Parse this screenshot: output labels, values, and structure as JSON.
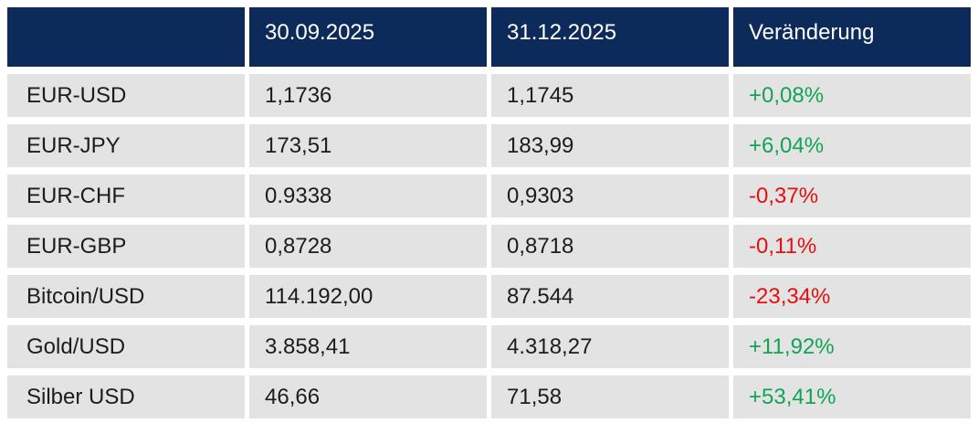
{
  "chart_data": {
    "type": "table",
    "title": "",
    "columns": [
      "",
      "30.09.2025",
      "31.12.2025",
      "Veränderung"
    ],
    "rows": [
      {
        "label": "EUR-USD",
        "v_30_09_2025": "1,1736",
        "v_31_12_2025": "1,1745",
        "change": "+0,08%",
        "change_numeric": 0.08,
        "trend": "up"
      },
      {
        "label": "EUR-JPY",
        "v_30_09_2025": "173,51",
        "v_31_12_2025": "183,99",
        "change": "+6,04%",
        "change_numeric": 6.04,
        "trend": "up"
      },
      {
        "label": "EUR-CHF",
        "v_30_09_2025": "0.9338",
        "v_31_12_2025": "0,9303",
        "change": "-0,37%",
        "change_numeric": -0.37,
        "trend": "down"
      },
      {
        "label": "EUR-GBP",
        "v_30_09_2025": "0,8728",
        "v_31_12_2025": "0,8718",
        "change": "-0,11%",
        "change_numeric": -0.11,
        "trend": "down"
      },
      {
        "label": "Bitcoin/USD",
        "v_30_09_2025": "114.192,00",
        "v_31_12_2025": "87.544",
        "change": "-23,34%",
        "change_numeric": -23.34,
        "trend": "down"
      },
      {
        "label": "Gold/USD",
        "v_30_09_2025": "3.858,41",
        "v_31_12_2025": "4.318,27",
        "change": "+11,92%",
        "change_numeric": 11.92,
        "trend": "up"
      },
      {
        "label": "Silber USD",
        "v_30_09_2025": "46,66",
        "v_31_12_2025": "71,58",
        "change": "+53,41%",
        "change_numeric": 53.41,
        "trend": "up"
      }
    ],
    "colors": {
      "header_bg": "#0c2a5a",
      "header_text": "#ffffff",
      "row_bg": "#e3e3e3",
      "body_text": "#1c1c1c",
      "positive": "#12a455",
      "negative": "#e60f0f"
    },
    "layout": {
      "grid": "off",
      "legend": "none"
    }
  }
}
